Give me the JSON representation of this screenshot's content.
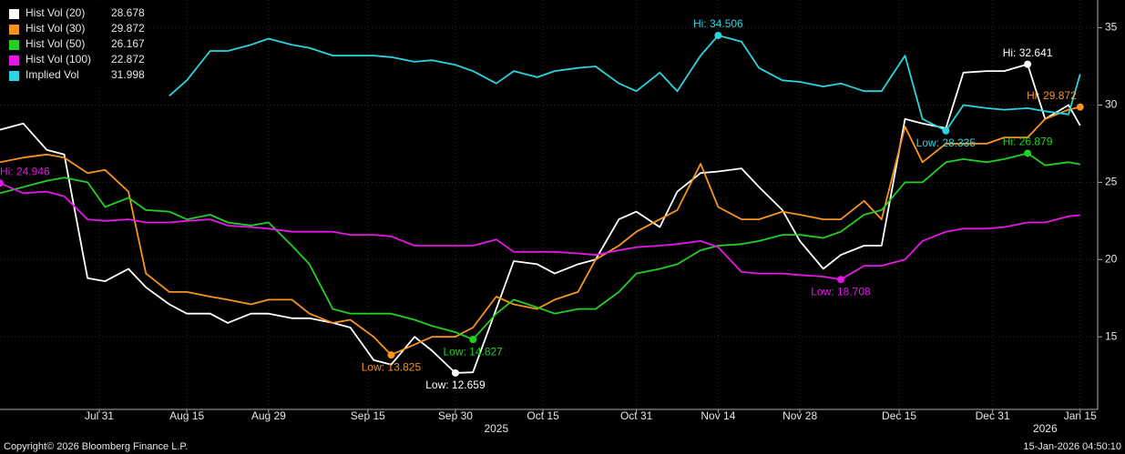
{
  "chart_data": {
    "type": "line",
    "x": [
      "2025-07-14",
      "2025-07-18",
      "2025-07-22",
      "2025-07-25",
      "2025-07-29",
      "2025-08-01",
      "2025-08-05",
      "2025-08-08",
      "2025-08-12",
      "2025-08-15",
      "2025-08-19",
      "2025-08-22",
      "2025-08-26",
      "2025-08-29",
      "2025-09-02",
      "2025-09-05",
      "2025-09-09",
      "2025-09-12",
      "2025-09-16",
      "2025-09-19",
      "2025-09-23",
      "2025-09-26",
      "2025-09-30",
      "2025-10-03",
      "2025-10-07",
      "2025-10-10",
      "2025-10-14",
      "2025-10-17",
      "2025-10-21",
      "2025-10-24",
      "2025-10-28",
      "2025-10-31",
      "2025-11-04",
      "2025-11-07",
      "2025-11-11",
      "2025-11-14",
      "2025-11-18",
      "2025-11-21",
      "2025-11-25",
      "2025-11-28",
      "2025-12-02",
      "2025-12-05",
      "2025-12-09",
      "2025-12-12",
      "2025-12-16",
      "2025-12-19",
      "2025-12-23",
      "2025-12-26",
      "2025-12-30",
      "2026-01-02",
      "2026-01-06",
      "2026-01-09",
      "2026-01-13",
      "2026-01-15"
    ],
    "series": [
      {
        "name": "Hist Vol (20)",
        "color": "#ffffff",
        "values": [
          28.4,
          28.8,
          27.1,
          26.8,
          18.8,
          18.6,
          19.4,
          18.2,
          17.1,
          16.5,
          16.5,
          15.9,
          16.5,
          16.5,
          16.2,
          16.2,
          15.9,
          15.6,
          13.5,
          13.2,
          15.0,
          14.1,
          12.659,
          12.7,
          16.8,
          19.9,
          19.7,
          19.1,
          19.7,
          20.0,
          22.6,
          23.1,
          22.1,
          24.4,
          25.6,
          25.7,
          25.9,
          24.7,
          23.2,
          21.2,
          19.4,
          20.3,
          20.9,
          20.9,
          29.1,
          28.8,
          28.5,
          32.1,
          32.2,
          32.2,
          32.641,
          29.1,
          30.0,
          28.678
        ]
      },
      {
        "name": "Hist Vol (30)",
        "color": "#f7941d",
        "values": [
          26.3,
          26.6,
          26.8,
          26.6,
          25.6,
          25.8,
          24.4,
          19.1,
          17.9,
          17.9,
          17.6,
          17.4,
          17.1,
          17.4,
          17.4,
          16.5,
          15.9,
          16.1,
          15.0,
          13.825,
          14.5,
          15.0,
          15.0,
          15.6,
          17.6,
          17.1,
          16.8,
          17.4,
          17.9,
          20.0,
          20.9,
          21.8,
          22.6,
          23.2,
          26.2,
          23.4,
          22.6,
          22.6,
          23.1,
          22.9,
          22.6,
          22.6,
          23.8,
          22.6,
          28.6,
          26.3,
          27.5,
          27.5,
          27.5,
          27.9,
          27.9,
          29.1,
          29.7,
          29.872
        ]
      },
      {
        "name": "Hist Vol (50)",
        "color": "#22d022",
        "values": [
          24.3,
          24.7,
          25.1,
          25.3,
          25.0,
          23.4,
          24.0,
          23.2,
          23.1,
          22.6,
          22.9,
          22.4,
          22.2,
          22.4,
          20.9,
          19.7,
          16.8,
          16.5,
          16.5,
          16.5,
          16.1,
          15.7,
          15.3,
          14.827,
          16.5,
          17.4,
          16.9,
          16.5,
          16.8,
          16.8,
          17.9,
          19.1,
          19.4,
          19.7,
          20.6,
          20.9,
          21.0,
          21.2,
          21.6,
          21.6,
          21.4,
          21.8,
          22.9,
          23.2,
          25.0,
          25.0,
          26.3,
          26.5,
          26.3,
          26.5,
          26.879,
          26.1,
          26.3,
          26.167
        ]
      },
      {
        "name": "Hist Vol (100)",
        "color": "#e815e8",
        "values": [
          24.946,
          24.3,
          24.4,
          24.1,
          22.6,
          22.5,
          22.6,
          22.4,
          22.4,
          22.5,
          22.6,
          22.2,
          22.1,
          22.0,
          21.8,
          21.8,
          21.8,
          21.6,
          21.6,
          21.5,
          20.9,
          20.9,
          20.9,
          20.9,
          21.3,
          20.5,
          20.5,
          20.5,
          20.4,
          20.3,
          20.6,
          20.8,
          20.9,
          21.0,
          21.2,
          20.8,
          19.2,
          19.1,
          19.1,
          19.0,
          18.9,
          18.708,
          19.6,
          19.6,
          20.0,
          21.2,
          21.8,
          22.0,
          22.0,
          22.1,
          22.4,
          22.4,
          22.8,
          22.872
        ]
      },
      {
        "name": "Implied Vol",
        "color": "#2ad4e0",
        "values": [
          null,
          null,
          null,
          null,
          null,
          null,
          null,
          null,
          30.6,
          31.6,
          33.5,
          33.5,
          33.9,
          34.3,
          33.9,
          33.7,
          33.2,
          33.2,
          33.2,
          33.1,
          32.8,
          32.9,
          32.6,
          32.2,
          31.4,
          32.2,
          31.8,
          32.2,
          32.4,
          32.5,
          31.4,
          30.9,
          32.1,
          30.9,
          33.2,
          34.506,
          34.1,
          32.4,
          31.6,
          31.5,
          31.2,
          31.4,
          30.9,
          30.9,
          33.2,
          29.1,
          28.335,
          30.0,
          29.8,
          29.7,
          29.8,
          29.6,
          29.4,
          31.998
        ]
      }
    ],
    "annotations": [
      {
        "text": "Hi: 24.946",
        "series": "Hist Vol (100)",
        "x": "2025-07-14"
      },
      {
        "text": "Low: 13.825",
        "series": "Hist Vol (30)",
        "x": "2025-09-19"
      },
      {
        "text": "Low: 12.659",
        "series": "Hist Vol (20)",
        "x": "2025-09-30"
      },
      {
        "text": "Low: 14.827",
        "series": "Hist Vol (50)",
        "x": "2025-10-03"
      },
      {
        "text": "Hi: 34.506",
        "series": "Implied Vol",
        "x": "2025-11-14"
      },
      {
        "text": "Low: 18.708",
        "series": "Hist Vol (100)",
        "x": "2025-12-05"
      },
      {
        "text": "Low: 28.335",
        "series": "Implied Vol",
        "x": "2025-12-23"
      },
      {
        "text": "Hi: 32.641",
        "series": "Hist Vol (20)",
        "x": "2026-01-06"
      },
      {
        "text": "Hi: 26.879",
        "series": "Hist Vol (50)",
        "x": "2026-01-06"
      },
      {
        "text": "Hi: 29.872",
        "series": "Hist Vol (30)",
        "x": "2026-01-15"
      }
    ],
    "xlim": [
      "2025-07-14",
      "2026-01-18"
    ],
    "xticks": [
      {
        "value": "2025-07-31",
        "label": "Jul 31"
      },
      {
        "value": "2025-08-15",
        "label": "Aug 15"
      },
      {
        "value": "2025-08-29",
        "label": "Aug 29"
      },
      {
        "value": "2025-09-15",
        "label": "Sep 15"
      },
      {
        "value": "2025-09-30",
        "label": "Sep 30"
      },
      {
        "value": "2025-10-15",
        "label": "Oct 15"
      },
      {
        "value": "2025-10-31",
        "label": "Oct 31"
      },
      {
        "value": "2025-11-14",
        "label": "Nov 14"
      },
      {
        "value": "2025-11-28",
        "label": "Nov 28"
      },
      {
        "value": "2025-12-15",
        "label": "Dec 15"
      },
      {
        "value": "2025-12-31",
        "label": "Dec 31"
      },
      {
        "value": "2026-01-15",
        "label": "Jan 15"
      }
    ],
    "year_labels": [
      {
        "value": "2025-10-07",
        "label": "2025"
      },
      {
        "value": "2026-01-09",
        "label": "2026"
      }
    ],
    "ylim": [
      10.3,
      36.8
    ],
    "yticks": [
      15,
      20,
      25,
      30,
      35
    ],
    "grid": true,
    "legend_position": "top-left",
    "footer_left": "Copyright© 2026 Bloomberg Finance L.P.",
    "footer_right": "15-Jan-2026 04:50:10"
  }
}
